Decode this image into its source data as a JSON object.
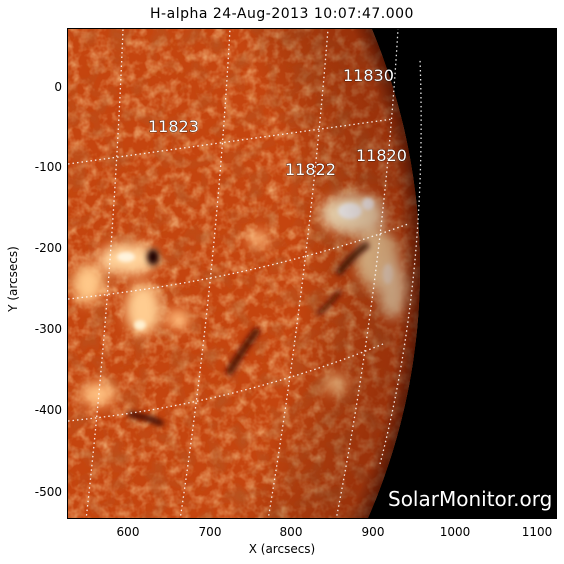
{
  "header": {
    "title": "H-alpha 24-Aug-2013 10:07:47.000"
  },
  "axes": {
    "xlabel": "X (arcsecs)",
    "ylabel": "Y (arcsecs)",
    "xticks": [
      "600",
      "700",
      "800",
      "900",
      "1000",
      "1100"
    ],
    "yticks": [
      "0",
      "-100",
      "-200",
      "-300",
      "-400",
      "-500"
    ]
  },
  "active_regions": [
    "11830",
    "11823",
    "11822",
    "11820"
  ],
  "watermark": "SolarMonitor.org",
  "colors": {
    "disk_base": "#c84a14",
    "disk_bright": "#ffd7a0",
    "space": "#000000",
    "grid": "#ffffff"
  }
}
